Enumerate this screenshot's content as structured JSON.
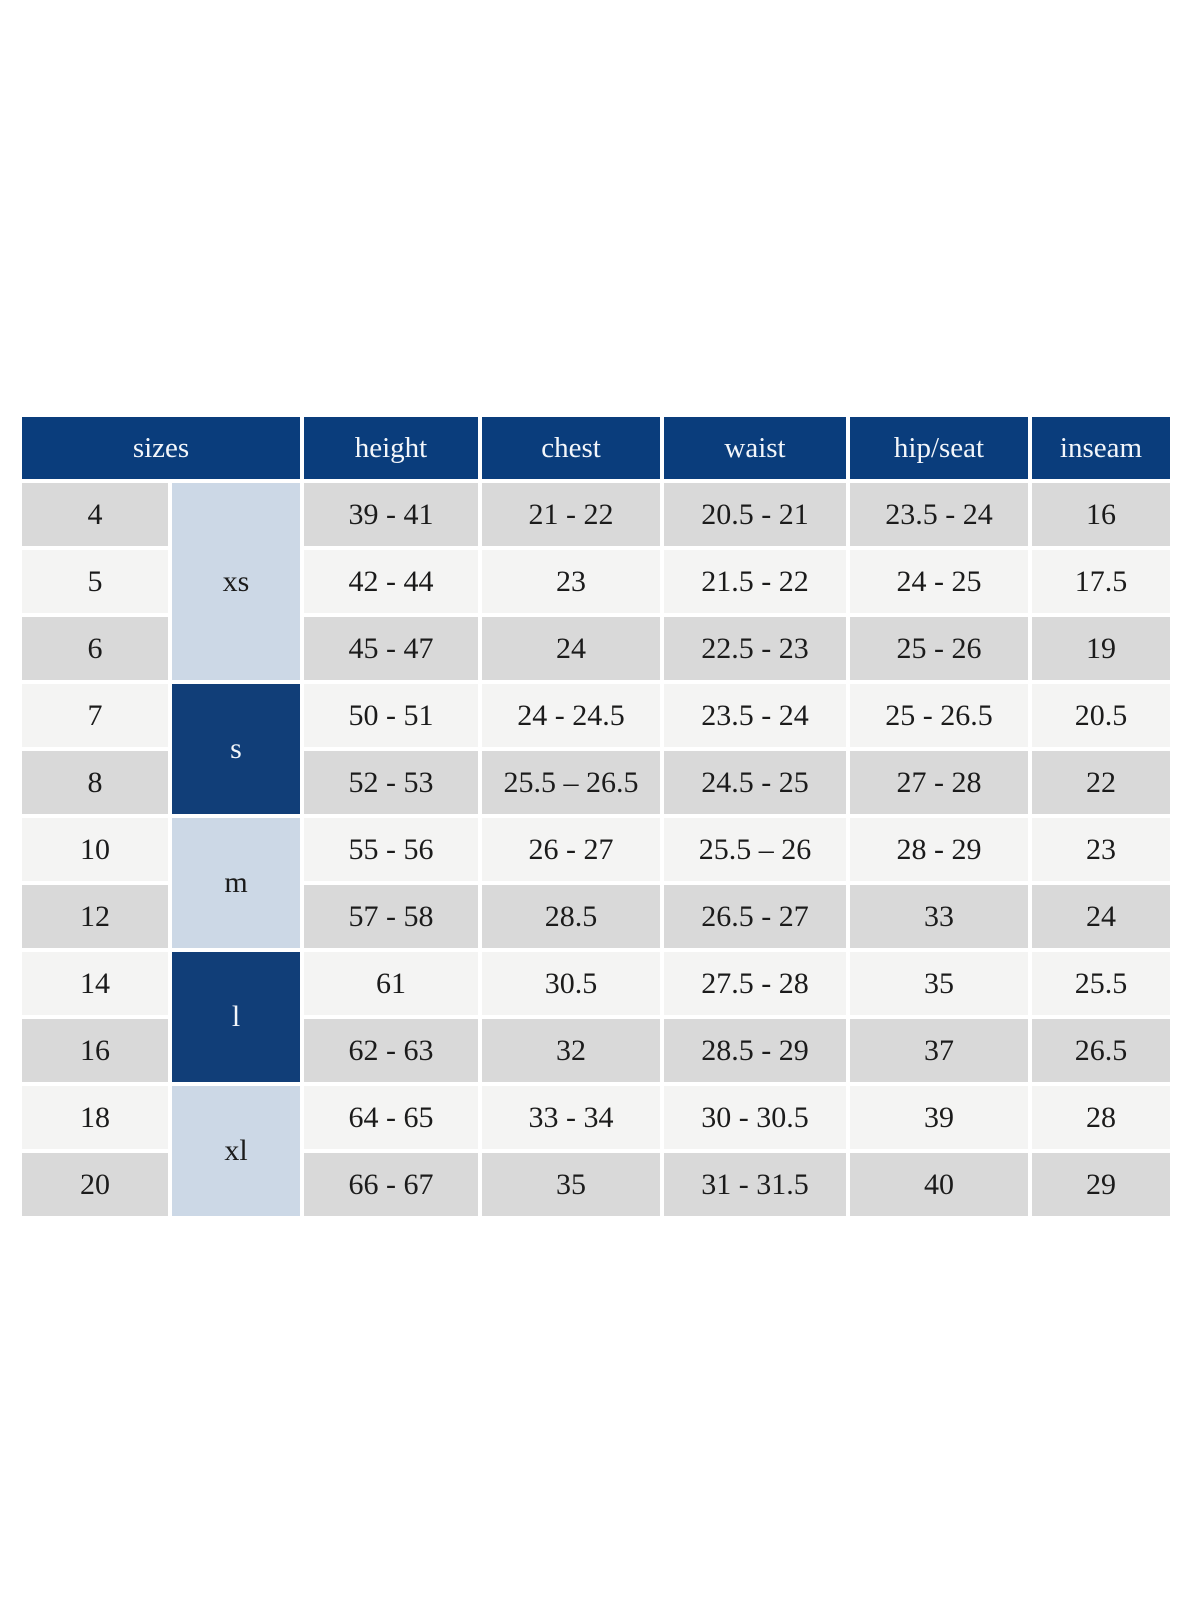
{
  "colors": {
    "page_bg": "#ffffff",
    "header_bg": "#0a3d7c",
    "header_text": "#f3f6fa",
    "group_dark_bg": "#113e78",
    "group_dark_text": "#f3f6fa",
    "group_light_bg": "#ccd8e6",
    "group_light_text": "#1b1b1b",
    "row_shade_a": "#d9d9d9",
    "row_shade_b": "#f4f4f3",
    "cell_text": "#1b1b1b"
  },
  "table": {
    "header": {
      "sizes_label": "sizes",
      "columns": [
        "height",
        "chest",
        "waist",
        "hip/seat",
        "inseam"
      ]
    },
    "size_groups": [
      {
        "label": "xs",
        "tone": "light",
        "rows": [
          {
            "size": "4",
            "height": "39 - 41",
            "chest": "21 - 22",
            "waist": "20.5 - 21",
            "hip_seat": "23.5 - 24",
            "inseam": "16"
          },
          {
            "size": "5",
            "height": "42 - 44",
            "chest": "23",
            "waist": "21.5 - 22",
            "hip_seat": "24 - 25",
            "inseam": "17.5"
          },
          {
            "size": "6",
            "height": "45 - 47",
            "chest": "24",
            "waist": "22.5 - 23",
            "hip_seat": "25 - 26",
            "inseam": "19"
          }
        ]
      },
      {
        "label": "s",
        "tone": "dark",
        "rows": [
          {
            "size": "7",
            "height": "50 - 51",
            "chest": "24 - 24.5",
            "waist": "23.5 - 24",
            "hip_seat": "25 - 26.5",
            "inseam": "20.5"
          },
          {
            "size": "8",
            "height": "52 - 53",
            "chest": "25.5 – 26.5",
            "waist": "24.5 - 25",
            "hip_seat": "27 - 28",
            "inseam": "22"
          }
        ]
      },
      {
        "label": "m",
        "tone": "light",
        "rows": [
          {
            "size": "10",
            "height": "55 - 56",
            "chest": "26 - 27",
            "waist": "25.5 – 26",
            "hip_seat": "28 - 29",
            "inseam": "23"
          },
          {
            "size": "12",
            "height": "57 - 58",
            "chest": "28.5",
            "waist": "26.5 - 27",
            "hip_seat": "33",
            "inseam": "24"
          }
        ]
      },
      {
        "label": "l",
        "tone": "dark",
        "rows": [
          {
            "size": "14",
            "height": "61",
            "chest": "30.5",
            "waist": "27.5 - 28",
            "hip_seat": "35",
            "inseam": "25.5"
          },
          {
            "size": "16",
            "height": "62 - 63",
            "chest": "32",
            "waist": "28.5 - 29",
            "hip_seat": "37",
            "inseam": "26.5"
          }
        ]
      },
      {
        "label": "xl",
        "tone": "light",
        "rows": [
          {
            "size": "18",
            "height": "64 - 65",
            "chest": "33 - 34",
            "waist": "30 - 30.5",
            "hip_seat": "39",
            "inseam": "28"
          },
          {
            "size": "20",
            "height": "66 - 67",
            "chest": "35",
            "waist": "31 - 31.5",
            "hip_seat": "40",
            "inseam": "29"
          }
        ]
      }
    ]
  }
}
